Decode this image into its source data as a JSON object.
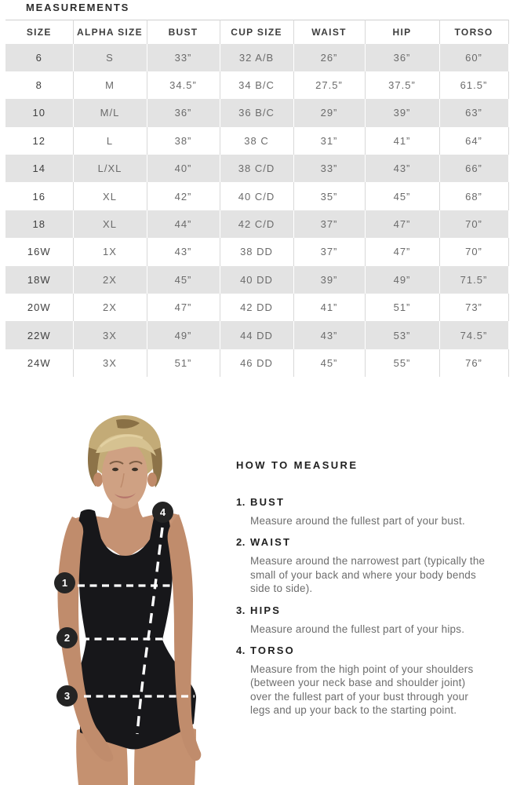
{
  "measurements": {
    "title": "MEASUREMENTS",
    "columns": [
      "SIZE",
      "ALPHA SIZE",
      "BUST",
      "CUP SIZE",
      "WAIST",
      "HIP",
      "TORSO"
    ],
    "rows": [
      [
        "6",
        "S",
        "33”",
        "32 A/B",
        "26”",
        "36”",
        "60”"
      ],
      [
        "8",
        "M",
        "34.5”",
        "34 B/C",
        "27.5”",
        "37.5”",
        "61.5”"
      ],
      [
        "10",
        "M/L",
        "36”",
        "36 B/C",
        "29”",
        "39”",
        "63”"
      ],
      [
        "12",
        "L",
        "38”",
        "38 C",
        "31”",
        "41”",
        "64”"
      ],
      [
        "14",
        "L/XL",
        "40”",
        "38 C/D",
        "33”",
        "43”",
        "66”"
      ],
      [
        "16",
        "XL",
        "42”",
        "40 C/D",
        "35”",
        "45”",
        "68”"
      ],
      [
        "18",
        "XL",
        "44”",
        "42 C/D",
        "37”",
        "47”",
        "70”"
      ],
      [
        "16W",
        "1X",
        "43”",
        "38 DD",
        "37”",
        "47”",
        "70”"
      ],
      [
        "18W",
        "2X",
        "45”",
        "40 DD",
        "39”",
        "49”",
        "71.5”"
      ],
      [
        "20W",
        "2X",
        "47”",
        "42 DD",
        "41”",
        "51”",
        "73”"
      ],
      [
        "22W",
        "3X",
        "49”",
        "44 DD",
        "43”",
        "53”",
        "74.5”"
      ],
      [
        "24W",
        "3X",
        "51”",
        "46 DD",
        "45”",
        "55”",
        "76”"
      ]
    ],
    "colors": {
      "row_alt_bg": "#e3e3e3",
      "table_border": "#d8d8d8",
      "header_text": "#3d3d3d",
      "cell_text": "#6b6b6b"
    }
  },
  "how_to_measure": {
    "title": "HOW TO MEASURE",
    "steps": [
      {
        "num": "1.",
        "label": "BUST",
        "text": "Measure around the fullest part of your bust."
      },
      {
        "num": "2.",
        "label": "WAIST",
        "text": "Measure around the narrowest part (typically the small of your back and where your body bends side to side)."
      },
      {
        "num": "3.",
        "label": "HIPS",
        "text": "Measure around the fullest part of your hips."
      },
      {
        "num": "4.",
        "label": "TORSO",
        "text": "Measure from the high point of your shoulders (between your neck base and shoulder joint) over the fullest part of your bust through your legs and up your back to the starting point."
      }
    ]
  },
  "figure": {
    "markers": [
      "1",
      "2",
      "3",
      "4"
    ],
    "marker_bg": "#242424",
    "marker_text_color": "#ffffff",
    "swimsuit_color": "#17171a",
    "dash_color": "#ffffff"
  }
}
